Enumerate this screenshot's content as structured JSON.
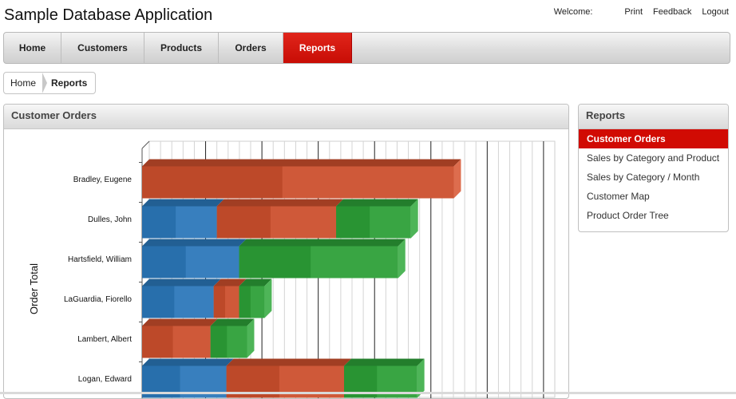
{
  "app": {
    "title": "Sample Database Application"
  },
  "top_links": {
    "welcome": "Welcome:",
    "print": "Print",
    "feedback": "Feedback",
    "logout": "Logout"
  },
  "nav": {
    "tabs": [
      {
        "label": "Home",
        "active": false
      },
      {
        "label": "Customers",
        "active": false
      },
      {
        "label": "Products",
        "active": false
      },
      {
        "label": "Orders",
        "active": false
      },
      {
        "label": "Reports",
        "active": true
      }
    ]
  },
  "breadcrumb": {
    "home": "Home",
    "current": "Reports"
  },
  "panel": {
    "title": "Customer Orders"
  },
  "sidebar": {
    "title": "Reports",
    "items": [
      {
        "label": "Customer Orders",
        "active": true
      },
      {
        "label": "Sales by Category and Product",
        "active": false
      },
      {
        "label": "Sales by Category / Month",
        "active": false
      },
      {
        "label": "Customer Map",
        "active": false
      },
      {
        "label": "Product Order Tree",
        "active": false
      }
    ]
  },
  "colors": {
    "accent": "#d10b03",
    "blue": "#2d7ec4",
    "red": "#d7532f",
    "green": "#2fa83a"
  },
  "chart_data": {
    "type": "bar",
    "orientation": "horizontal",
    "stacked": true,
    "ylabel": "Order Total",
    "categories": [
      "Bradley, Eugene",
      "Dulles, John",
      "Hartsfield, William",
      "LaGuardia, Fiorello",
      "Lambert, Albert",
      "Logan, Edward"
    ],
    "series": [
      {
        "color": "#2d7ec4",
        "values": [
          0,
          94,
          122,
          90,
          0,
          106
        ]
      },
      {
        "color": "#d7532f",
        "values": [
          392,
          150,
          0,
          32,
          86,
          148
        ]
      },
      {
        "color": "#2fa83a",
        "values": [
          0,
          94,
          200,
          32,
          46,
          92
        ]
      }
    ],
    "xlim": [
      0,
      510
    ],
    "grid": true,
    "legend": "none"
  }
}
